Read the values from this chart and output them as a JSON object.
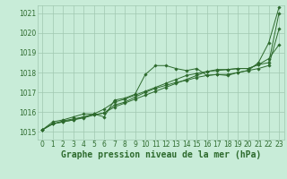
{
  "background_color": "#c8ecd8",
  "plot_bg_color": "#c8ecd8",
  "grid_color": "#a0c8b0",
  "line_color": "#2d6a2d",
  "marker_color": "#2d6a2d",
  "xlabel": "Graphe pression niveau de la mer (hPa)",
  "xlabel_fontsize": 7,
  "ylim": [
    1014.6,
    1021.4
  ],
  "xlim": [
    -0.5,
    23.5
  ],
  "yticks": [
    1015,
    1016,
    1017,
    1018,
    1019,
    1020,
    1021
  ],
  "xticks": [
    0,
    1,
    2,
    3,
    4,
    5,
    6,
    7,
    8,
    9,
    10,
    11,
    12,
    13,
    14,
    15,
    16,
    17,
    18,
    19,
    20,
    21,
    22,
    23
  ],
  "series": [
    [
      1015.1,
      1015.5,
      1015.6,
      1015.75,
      1015.9,
      1015.9,
      1015.75,
      1016.6,
      1016.7,
      1016.9,
      1017.9,
      1018.35,
      1018.35,
      1018.2,
      1018.1,
      1018.2,
      1017.85,
      1017.9,
      1017.85,
      1018.0,
      1018.1,
      1018.5,
      1019.5,
      1021.3
    ],
    [
      1015.1,
      1015.4,
      1015.55,
      1015.65,
      1015.75,
      1015.85,
      1015.95,
      1016.35,
      1016.5,
      1016.75,
      1017.0,
      1017.2,
      1017.35,
      1017.5,
      1017.6,
      1017.75,
      1017.85,
      1017.9,
      1017.9,
      1018.0,
      1018.1,
      1018.2,
      1018.35,
      1020.2
    ],
    [
      1015.1,
      1015.4,
      1015.5,
      1015.6,
      1015.75,
      1015.9,
      1016.15,
      1016.5,
      1016.65,
      1016.85,
      1017.05,
      1017.25,
      1017.45,
      1017.65,
      1017.85,
      1017.95,
      1018.05,
      1018.1,
      1018.15,
      1018.2,
      1018.2,
      1018.4,
      1018.5,
      1021.0
    ],
    [
      1015.1,
      1015.4,
      1015.5,
      1015.6,
      1015.7,
      1015.85,
      1015.95,
      1016.25,
      1016.45,
      1016.65,
      1016.85,
      1017.05,
      1017.25,
      1017.45,
      1017.65,
      1017.85,
      1018.05,
      1018.15,
      1018.15,
      1018.2,
      1018.2,
      1018.4,
      1018.7,
      1019.4
    ]
  ],
  "tick_fontsize": 5.5
}
